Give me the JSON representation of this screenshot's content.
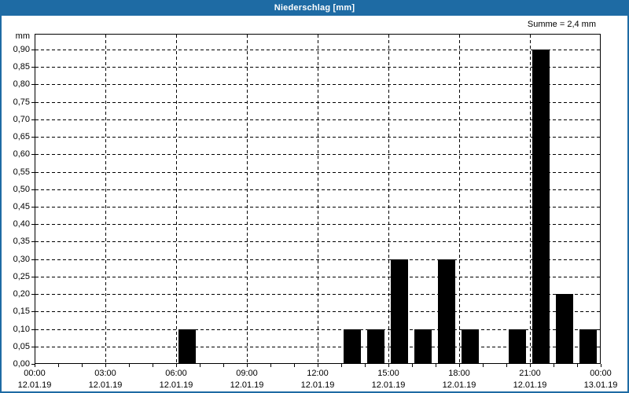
{
  "window": {
    "title": "Niederschlag [mm]",
    "summary_label": "Summe = 2,4 mm",
    "colors": {
      "titlebar": "#1e6ba4",
      "border": "#1e6ba4",
      "bar": "#000000",
      "grid": "#000000",
      "background": "#ffffff",
      "title_text": "#ffffff"
    }
  },
  "chart_data": {
    "type": "bar",
    "title": "Niederschlag [mm]",
    "ylabel": "mm",
    "xlabel": "",
    "unit": "mm",
    "sum_label": "Summe = 2,4 mm",
    "sum_mm": 2.4,
    "ylim": [
      0,
      0.945
    ],
    "y_tick_step": 0.05,
    "y_tick_labels": [
      "0,00",
      "0,05",
      "0,10",
      "0,15",
      "0,20",
      "0,25",
      "0,30",
      "0,35",
      "0,40",
      "0,45",
      "0,50",
      "0,55",
      "0,60",
      "0,65",
      "0,70",
      "0,75",
      "0,80",
      "0,85",
      "0,90"
    ],
    "x_range_hours": 24,
    "x_minor_tick_hours": 1,
    "grid": true,
    "legend": false,
    "x_major_ticks": [
      {
        "hour": 0,
        "time": "00:00",
        "date": "12.01.19"
      },
      {
        "hour": 3,
        "time": "03:00",
        "date": "12.01.19"
      },
      {
        "hour": 6,
        "time": "06:00",
        "date": "12.01.19"
      },
      {
        "hour": 9,
        "time": "09:00",
        "date": "12.01.19"
      },
      {
        "hour": 12,
        "time": "12:00",
        "date": "12.01.19"
      },
      {
        "hour": 15,
        "time": "15:00",
        "date": "12.01.19"
      },
      {
        "hour": 18,
        "time": "18:00",
        "date": "12.01.19"
      },
      {
        "hour": 21,
        "time": "21:00",
        "date": "12.01.19"
      },
      {
        "hour": 24,
        "time": "00:00",
        "date": "13.01.19"
      }
    ],
    "series": [
      {
        "name": "Niederschlag",
        "hourly_values_mm": [
          0,
          0,
          0,
          0,
          0,
          0,
          0.1,
          0,
          0,
          0,
          0,
          0,
          0,
          0.1,
          0.1,
          0.3,
          0.1,
          0.3,
          0.1,
          0,
          0.1,
          0.9,
          0.2,
          0.1
        ]
      }
    ]
  }
}
